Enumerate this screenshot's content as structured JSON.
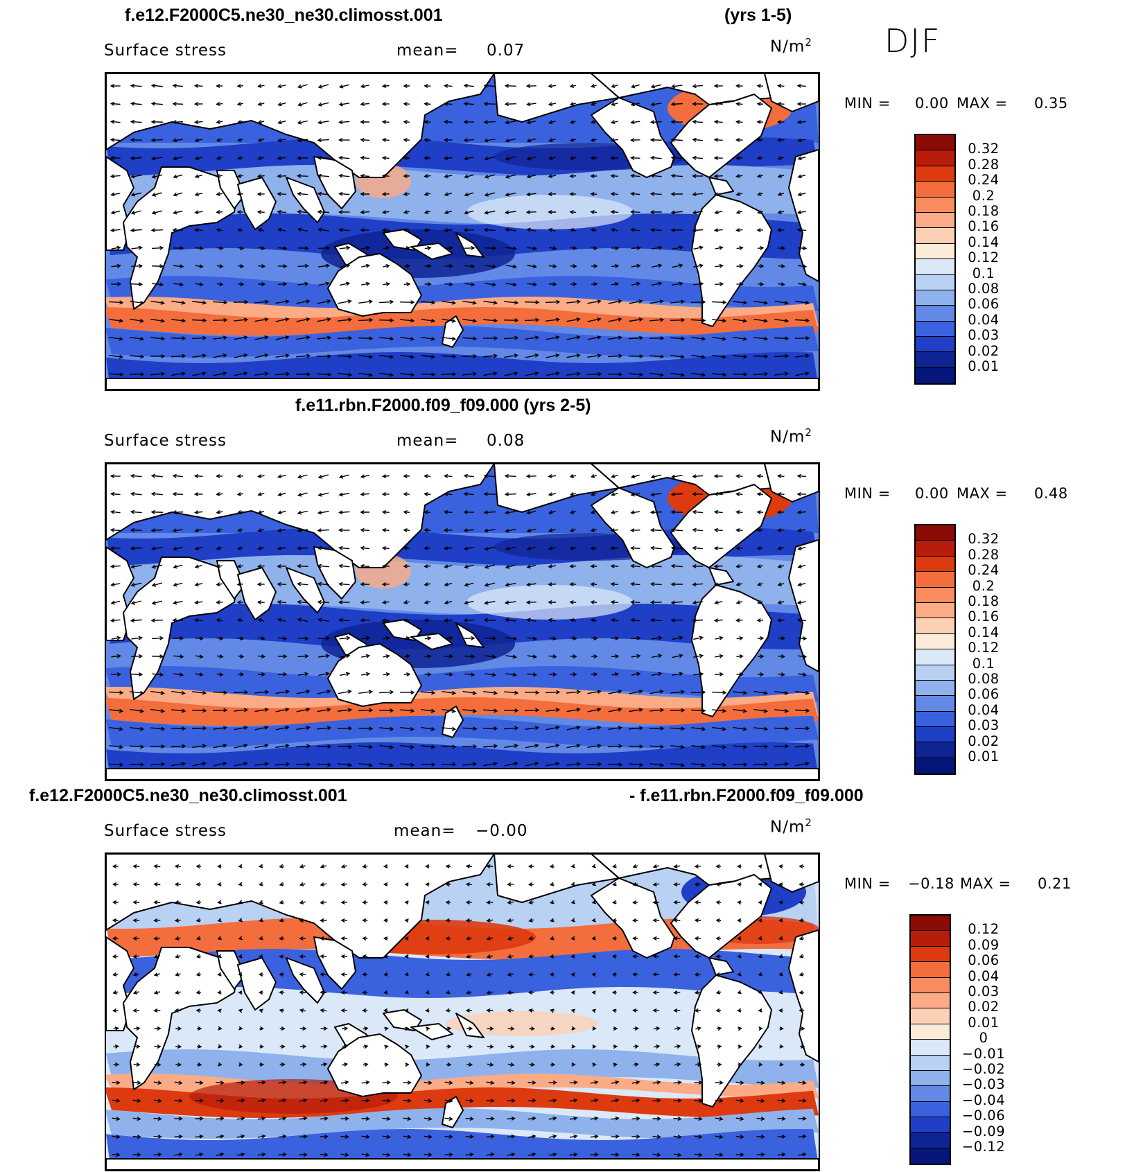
{
  "season": "DJF",
  "panels": [
    {
      "title_left": "f.e12.F2000C5.ne30_ne30.climosst.001",
      "title_right": "(yrs 1-5)",
      "variable": "Surface stress",
      "mean_label": "mean=",
      "mean_value": "0.07",
      "units_base": "N/m",
      "units_exp": "2",
      "min_label": "MIN =",
      "min_value": "0.00",
      "max_label": "MAX =",
      "max_value": "0.35",
      "levels": [
        "0.32",
        "0.28",
        "0.24",
        "0.2",
        "0.18",
        "0.16",
        "0.14",
        "0.12",
        "0.1",
        "0.08",
        "0.06",
        "0.04",
        "0.03",
        "0.02",
        "0.01"
      ],
      "colors": [
        "#8b0b06",
        "#b81d0c",
        "#de3a10",
        "#f36e3c",
        "#f98c5e",
        "#fbab85",
        "#fcd0b4",
        "#fdebd9",
        "#dbe8f8",
        "#b9d1f3",
        "#8fb1ec",
        "#6189e5",
        "#3a62de",
        "#1e3fc6",
        "#0f2494",
        "#06157a"
      ],
      "kind": "full"
    },
    {
      "title_left": "f.e11.rbn.F2000.f09_f09.000 (yrs 2-5)",
      "title_right": "",
      "variable": "Surface stress",
      "mean_label": "mean=",
      "mean_value": "0.08",
      "units_base": "N/m",
      "units_exp": "2",
      "min_label": "MIN =",
      "min_value": "0.00",
      "max_label": "MAX =",
      "max_value": "0.48",
      "levels": [
        "0.32",
        "0.28",
        "0.24",
        "0.2",
        "0.18",
        "0.16",
        "0.14",
        "0.12",
        "0.1",
        "0.08",
        "0.06",
        "0.04",
        "0.03",
        "0.02",
        "0.01"
      ],
      "colors": [
        "#8b0b06",
        "#b81d0c",
        "#de3a10",
        "#f36e3c",
        "#f98c5e",
        "#fbab85",
        "#fcd0b4",
        "#fdebd9",
        "#dbe8f8",
        "#b9d1f3",
        "#8fb1ec",
        "#6189e5",
        "#3a62de",
        "#1e3fc6",
        "#0f2494",
        "#06157a"
      ],
      "kind": "full"
    },
    {
      "title_left": "f.e12.F2000C5.ne30_ne30.climosst.001",
      "title_right": "- f.e11.rbn.F2000.f09_f09.000",
      "variable": "Surface stress",
      "mean_label": "mean=",
      "mean_value": "−0.00",
      "units_base": "N/m",
      "units_exp": "2",
      "min_label": "MIN =",
      "min_value": "−0.18",
      "max_label": "MAX =",
      "max_value": "0.21",
      "levels": [
        "0.12",
        "0.09",
        "0.06",
        "0.04",
        "0.03",
        "0.02",
        "0.01",
        "0",
        "−0.01",
        "−0.02",
        "−0.03",
        "−0.04",
        "−0.06",
        "−0.09",
        "−0.12"
      ],
      "colors": [
        "#8b0b06",
        "#b81d0c",
        "#de3a10",
        "#f36e3c",
        "#f98c5e",
        "#fbab85",
        "#fcd0b4",
        "#fdebd9",
        "#dbe8f8",
        "#b9d1f3",
        "#8fb1ec",
        "#6189e5",
        "#3a62de",
        "#1e3fc6",
        "#0f2494",
        "#06157a"
      ],
      "kind": "diff"
    }
  ]
}
